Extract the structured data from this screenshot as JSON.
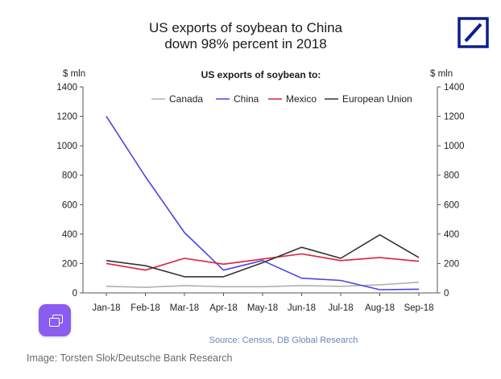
{
  "chart_data": {
    "type": "line",
    "title_line1": "US exports of soybean to China",
    "title_line2": "down 98% percent in 2018",
    "subtitle": "US exports of  soybean to:",
    "y_unit_left": "$ mln",
    "y_unit_right": "$ mln",
    "ylim": [
      0,
      1400
    ],
    "yticks": [
      0,
      200,
      400,
      600,
      800,
      1000,
      1200,
      1400
    ],
    "categories": [
      "Jan-18",
      "Feb-18",
      "Mar-18",
      "Apr-18",
      "May-18",
      "Jun-18",
      "Jul-18",
      "Aug-18",
      "Sep-18"
    ],
    "series": [
      {
        "name": "Canada",
        "color": "#b0b0b0",
        "values": [
          45,
          38,
          50,
          42,
          42,
          50,
          45,
          55,
          72
        ]
      },
      {
        "name": "China",
        "color": "#4a43e8",
        "values": [
          1200,
          790,
          410,
          155,
          220,
          100,
          85,
          22,
          25
        ]
      },
      {
        "name": "Mexico",
        "color": "#e0203a",
        "values": [
          200,
          155,
          235,
          195,
          230,
          265,
          220,
          240,
          215
        ]
      },
      {
        "name": "European Union",
        "color": "#333333",
        "values": [
          220,
          185,
          110,
          110,
          205,
          310,
          235,
          395,
          240
        ]
      }
    ],
    "legend_position": "top",
    "grid": false,
    "source": "Source: Census, DB Global Research"
  },
  "caption": "Image: Torsten Slok/Deutsche Bank Research",
  "logo": {
    "name": "deutsche-bank-logo",
    "color": "#0e1d8c"
  },
  "fab": {
    "icon": "copy-icon",
    "color": "#8a5cf0"
  }
}
